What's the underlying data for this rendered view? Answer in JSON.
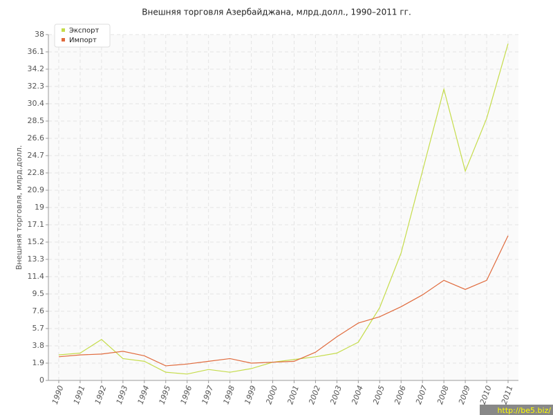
{
  "chart_data": {
    "type": "line",
    "title": "Внешняя торговля Азербайджана, млрд.долл., 1990–2011 гг.",
    "y_label": "Внешняя торговля, млрд.долл.",
    "categories": [
      "1990",
      "1991",
      "1992",
      "1993",
      "1994",
      "1995",
      "1996",
      "1997",
      "1998",
      "1999",
      "2000",
      "2001",
      "2002",
      "2003",
      "2004",
      "2005",
      "2006",
      "2007",
      "2008",
      "2009",
      "2010",
      "2011"
    ],
    "series": [
      {
        "name": "Экспорт",
        "color": "#c5dc4a",
        "values": [
          2.8,
          3.0,
          4.5,
          2.4,
          2.1,
          0.9,
          0.7,
          1.2,
          0.9,
          1.3,
          2.0,
          2.3,
          2.6,
          3.0,
          4.2,
          8.0,
          14.0,
          23.0,
          32.0,
          23.0,
          28.8,
          37.0
        ]
      },
      {
        "name": "Импорт",
        "color": "#e06a3c",
        "values": [
          2.6,
          2.8,
          2.9,
          3.2,
          2.7,
          1.6,
          1.8,
          2.1,
          2.4,
          1.9,
          2.0,
          2.1,
          3.1,
          4.8,
          6.3,
          7.0,
          8.1,
          9.4,
          11.0,
          10.0,
          11.0,
          15.9
        ]
      }
    ],
    "ylim": [
      0,
      38
    ],
    "yticks": [
      0,
      1.9,
      3.8,
      5.7,
      7.6,
      9.5,
      11.4,
      13.3,
      15.2,
      17.1,
      19,
      20.9,
      22.8,
      24.7,
      26.6,
      28.5,
      30.4,
      32.3,
      34.2,
      36.1,
      38
    ],
    "grid": true,
    "legend": "top-left",
    "watermark": "http://be5.biz/"
  }
}
